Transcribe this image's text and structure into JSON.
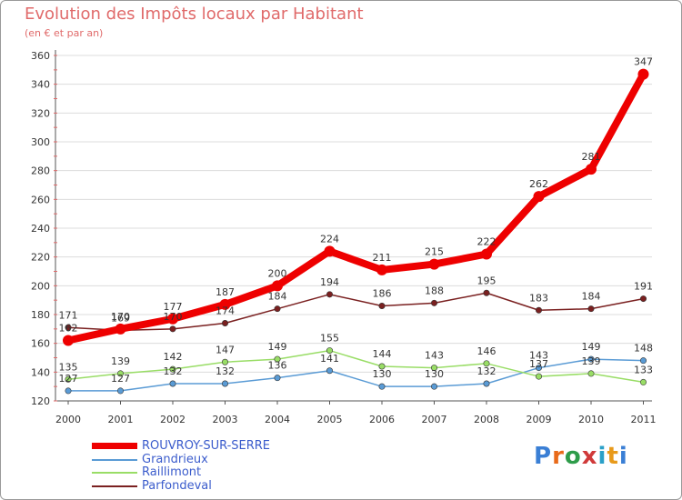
{
  "title": "Evolution des Impôts locaux par Habitant",
  "subtitle": "(en € et par an)",
  "brand": "Proxiti",
  "chart_data": {
    "type": "line",
    "title": "Evolution des Impôts locaux par Habitant",
    "subtitle": "(en € et par an)",
    "xlabel": "",
    "ylabel": "",
    "ylim": [
      120,
      360
    ],
    "yticks": [
      120,
      140,
      160,
      180,
      200,
      220,
      240,
      260,
      280,
      300,
      320,
      340,
      360
    ],
    "grid": true,
    "legend": "bottom-left",
    "categories": [
      "2000",
      "2001",
      "2002",
      "2003",
      "2004",
      "2005",
      "2006",
      "2007",
      "2008",
      "2009",
      "2010",
      "2011"
    ],
    "series": [
      {
        "name": "ROUVROY-SUR-SERRE",
        "color": "#ee0000",
        "values": [
          162,
          170,
          177,
          187,
          200,
          224,
          211,
          215,
          222,
          262,
          281,
          347
        ],
        "labels": [
          "162",
          "170",
          "177",
          "187",
          "200",
          "224",
          "211",
          "215",
          "222",
          "262",
          "281",
          "347"
        ]
      },
      {
        "name": "Grandrieux",
        "color": "#5a9bd5",
        "values": [
          127,
          127,
          132,
          132,
          136,
          141,
          130,
          130,
          132,
          143,
          149,
          148
        ],
        "labels": [
          "127",
          "127",
          "132",
          "132",
          "136",
          "141",
          "130",
          "130",
          "132",
          "143",
          "149",
          "148"
        ]
      },
      {
        "name": "Raillimont",
        "color": "#99dd66",
        "values": [
          135,
          139,
          142,
          147,
          149,
          155,
          144,
          143,
          146,
          137,
          139,
          133
        ],
        "labels": [
          "135",
          "139",
          "142",
          "147",
          "149",
          "155",
          "144",
          "143",
          "146",
          "137",
          "139",
          "133"
        ]
      },
      {
        "name": "Parfondeval",
        "color": "#7a2020",
        "values": [
          171,
          169,
          170,
          174,
          184,
          194,
          186,
          188,
          195,
          183,
          184,
          191
        ],
        "labels": [
          "171",
          "169",
          "170",
          "174",
          "184",
          "194",
          "186",
          "188",
          "195",
          "183",
          "184",
          "191"
        ]
      }
    ]
  }
}
